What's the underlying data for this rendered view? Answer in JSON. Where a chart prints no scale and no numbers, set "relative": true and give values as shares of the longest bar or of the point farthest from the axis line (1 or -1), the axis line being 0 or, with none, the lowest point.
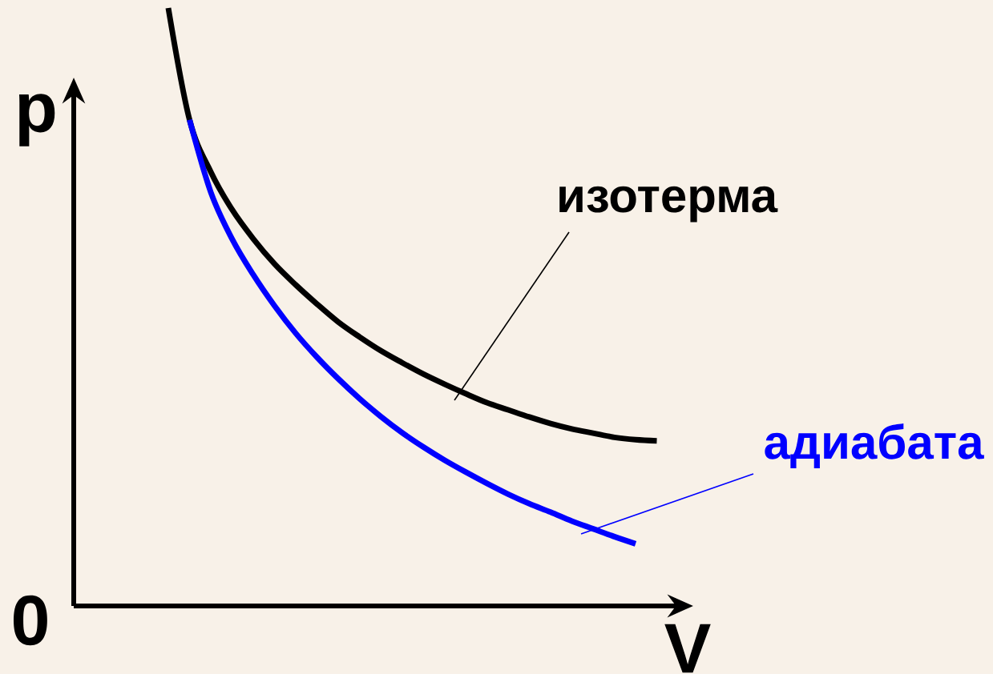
{
  "chart_data": {
    "type": "line",
    "relative": true,
    "xlabel": "V",
    "ylabel": "p",
    "annotations": [
      "0"
    ],
    "categories": [
      null,
      null,
      null,
      null,
      null,
      null,
      null,
      null,
      null,
      null,
      null,
      null,
      null,
      null,
      null,
      null,
      null,
      null,
      null,
      null,
      null,
      null,
      null,
      null
    ],
    "series": [
      {
        "name": "изотерма",
        "color": "#000000",
        "values": [
          1.0,
          0.813,
          0.726,
          0.663,
          0.614,
          0.572,
          0.537,
          0.505,
          0.475,
          0.45,
          0.427,
          0.407,
          0.388,
          0.371,
          0.355,
          0.34,
          0.328,
          0.316,
          0.305,
          0.296,
          0.289,
          0.282,
          0.278,
          0.276
        ]
      },
      {
        "name": "адиабата",
        "color": "#0000ff",
        "values": [
          null,
          0.813,
          0.692,
          0.614,
          0.554,
          0.502,
          0.456,
          0.416,
          0.38,
          0.347,
          0.317,
          0.29,
          0.266,
          0.244,
          0.224,
          0.205,
          0.187,
          0.171,
          0.157,
          0.142,
          0.129,
          0.116,
          0.104,
          null
        ]
      }
    ]
  }
}
